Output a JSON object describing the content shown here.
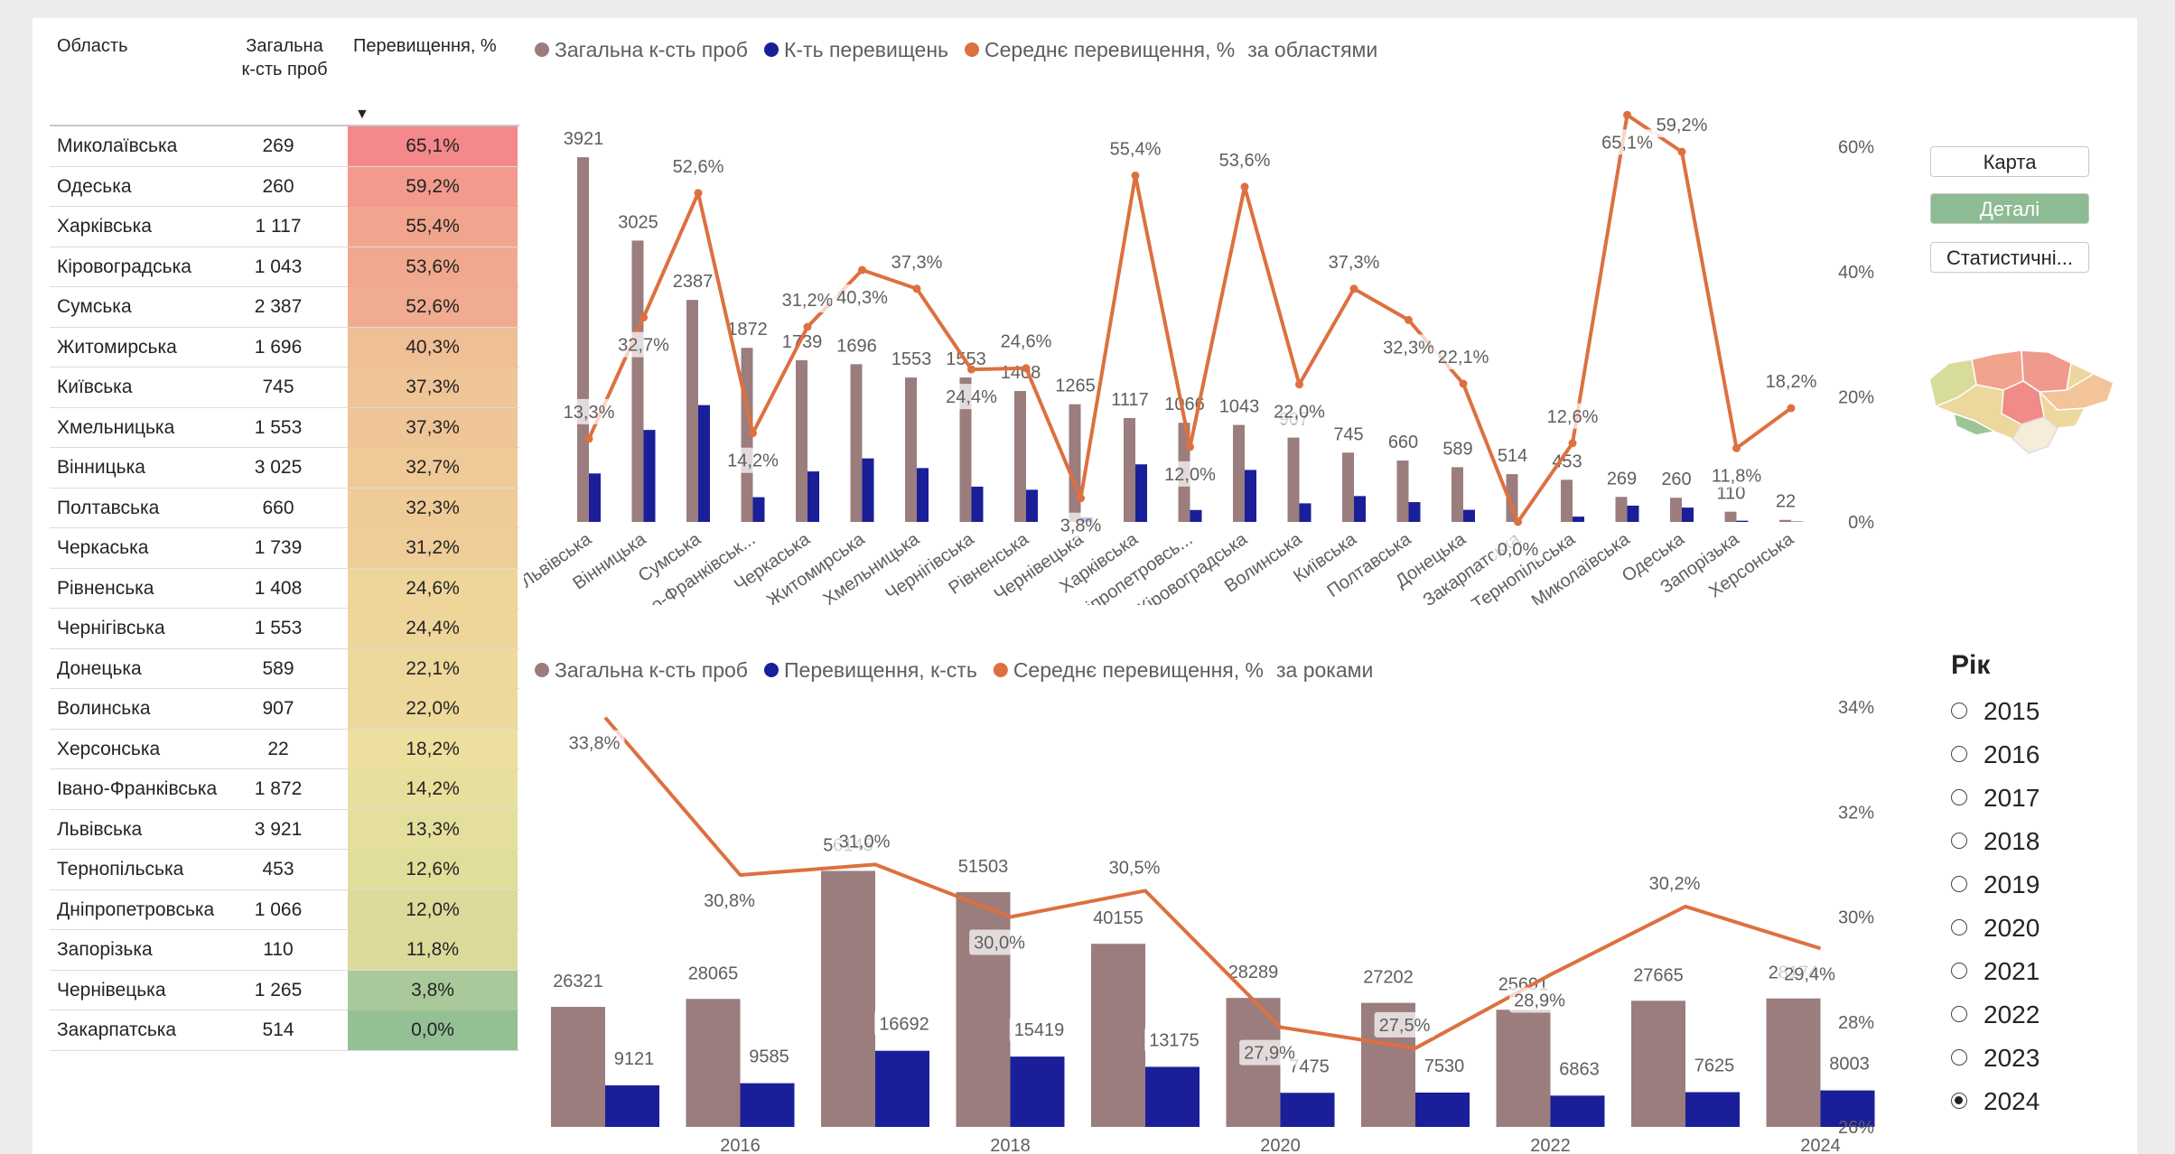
{
  "table": {
    "headers": {
      "region": "Область",
      "total": "Загальна к-сть проб",
      "exceed": "Перевищення, %"
    },
    "rows": [
      {
        "region": "Миколаївська",
        "total": "269",
        "pct": "65,1%",
        "color": "#f4888a"
      },
      {
        "region": "Одеська",
        "total": "260",
        "pct": "59,2%",
        "color": "#f29a8e"
      },
      {
        "region": "Харківська",
        "total": "1 117",
        "pct": "55,4%",
        "color": "#f1a58f"
      },
      {
        "region": "Кіровоградська",
        "total": "1 043",
        "pct": "53,6%",
        "color": "#f0a88f"
      },
      {
        "region": "Сумська",
        "total": "2 387",
        "pct": "52,6%",
        "color": "#f0ab90"
      },
      {
        "region": "Житомирська",
        "total": "1 696",
        "pct": "40,3%",
        "color": "#efbf95"
      },
      {
        "region": "Київська",
        "total": "745",
        "pct": "37,3%",
        "color": "#efc497"
      },
      {
        "region": "Хмельницька",
        "total": "1 553",
        "pct": "37,3%",
        "color": "#efc497"
      },
      {
        "region": "Вінницька",
        "total": "3 025",
        "pct": "32,7%",
        "color": "#efca98"
      },
      {
        "region": "Полтавська",
        "total": "660",
        "pct": "32,3%",
        "color": "#efcb98"
      },
      {
        "region": "Черкаська",
        "total": "1 739",
        "pct": "31,2%",
        "color": "#efcd99"
      },
      {
        "region": "Рівненська",
        "total": "1 408",
        "pct": "24,6%",
        "color": "#eed69b"
      },
      {
        "region": "Чернігівська",
        "total": "1 553",
        "pct": "24,4%",
        "color": "#eed69b"
      },
      {
        "region": "Донецька",
        "total": "589",
        "pct": "22,1%",
        "color": "#eed99c"
      },
      {
        "region": "Волинська",
        "total": "907",
        "pct": "22,0%",
        "color": "#eed99c"
      },
      {
        "region": "Херсонська",
        "total": "22",
        "pct": "18,2%",
        "color": "#eddf9e"
      },
      {
        "region": "Івано-Франківська",
        "total": "1 872",
        "pct": "14,2%",
        "color": "#e7e09d"
      },
      {
        "region": "Львівська",
        "total": "3 921",
        "pct": "13,3%",
        "color": "#e4df9d"
      },
      {
        "region": "Тернопільська",
        "total": "453",
        "pct": "12,6%",
        "color": "#e1de9c"
      },
      {
        "region": "Дніпропетровська",
        "total": "1 066",
        "pct": "12,0%",
        "color": "#ddda9b"
      },
      {
        "region": "Запорізька",
        "total": "110",
        "pct": "11,8%",
        "color": "#dcda9b"
      },
      {
        "region": "Чернівецька",
        "total": "1 265",
        "pct": "3,8%",
        "color": "#a9c99a"
      },
      {
        "region": "Закарпатська",
        "total": "514",
        "pct": "0,0%",
        "color": "#94c095"
      }
    ]
  },
  "buttons": {
    "map": "Карта",
    "details": "Деталі",
    "stats": "Статистичні..."
  },
  "year_slicer": {
    "title": "Рік",
    "years": [
      "2015",
      "2016",
      "2017",
      "2018",
      "2019",
      "2020",
      "2021",
      "2022",
      "2023",
      "2024"
    ],
    "selected": "2024"
  },
  "colors": {
    "total": "#9b7d7e",
    "exceed": "#1a1f99",
    "avg": "#dd7040"
  },
  "chart_data": [
    {
      "type": "bar",
      "legend": [
        "Загальна к-сть проб",
        "К-ть перевищень",
        "Середнє перевищення, %"
      ],
      "title": "за областями",
      "categories": [
        "Львівська",
        "Вінницька",
        "Сумська",
        "Івано-Франківськ...",
        "Черкаська",
        "Житомирська",
        "Хмельницька",
        "Чернігівська",
        "Рівненська",
        "Чернівецька",
        "Харківська",
        "Дніпропетровсь...",
        "Кіровоградська",
        "Волинська",
        "Київська",
        "Полтавська",
        "Донецька",
        "Закарпатська",
        "Тернопільська",
        "Миколаївська",
        "Одеська",
        "Запорізька",
        "Херсонська"
      ],
      "series": [
        {
          "name": "Загальна к-сть проб",
          "values": [
            3921,
            3025,
            2387,
            1872,
            1739,
            1696,
            1553,
            1553,
            1408,
            1265,
            1117,
            1066,
            1043,
            907,
            745,
            660,
            589,
            514,
            453,
            269,
            260,
            110,
            22
          ]
        },
        {
          "name": "К-ть перевищень",
          "values": [
            521,
            989,
            1256,
            266,
            543,
            683,
            579,
            379,
            346,
            48,
            619,
            128,
            559,
            200,
            278,
            213,
            130,
            0,
            57,
            175,
            154,
            13,
            4
          ]
        },
        {
          "name": "Середнє перевищення, %",
          "axis": "secondary",
          "values": [
            13.3,
            32.7,
            52.6,
            14.2,
            31.2,
            40.3,
            37.3,
            24.4,
            24.6,
            3.8,
            55.4,
            12.0,
            53.6,
            22.0,
            37.3,
            32.3,
            22.1,
            0.0,
            12.6,
            65.1,
            59.2,
            11.8,
            18.2
          ]
        }
      ],
      "total_labels": [
        "3921",
        "3025",
        "2387",
        "1872",
        "1739",
        "1696",
        "1553",
        "1553",
        "1408",
        "1265",
        "1117",
        "1066",
        "1043",
        "907",
        "745",
        "660",
        "589",
        "514",
        "453",
        "269",
        "260",
        "110",
        "22"
      ],
      "pct_labels": [
        "13,3%",
        "32,7%",
        "52,6%",
        "14,2%",
        "31,2%",
        "40,3%",
        "37,3%",
        "24,4%",
        "24,6%",
        "3,8%",
        "55,4%",
        "12,0%",
        "53,6%",
        "22,0%",
        "37,3%",
        "32,3%",
        "22,1%",
        "0,0%",
        "12,6%",
        "65,1%",
        "59,2%",
        "11,8%",
        "18,2%"
      ],
      "ylim": [
        0,
        4000
      ],
      "y2lim": [
        0,
        65
      ],
      "y2ticks": [
        "0%",
        "20%",
        "40%",
        "60%"
      ]
    },
    {
      "type": "bar",
      "legend": [
        "Загальна к-сть проб",
        "Перевищення, к-сть",
        "Середнє перевищення, %"
      ],
      "title": "за роками",
      "x": [
        "2015",
        "2016",
        "2017",
        "2018",
        "2019",
        "2020",
        "2021",
        "2022",
        "2023",
        "2024"
      ],
      "xticks": [
        "2016",
        "2018",
        "2020",
        "2022",
        "2024"
      ],
      "series": [
        {
          "name": "Загальна к-сть проб",
          "values": [
            26321,
            28065,
            56145,
            51503,
            40155,
            28289,
            27202,
            25691,
            27665,
            28174
          ]
        },
        {
          "name": "Перевищення, к-сть",
          "values": [
            9121,
            9585,
            16692,
            15419,
            13175,
            7475,
            7530,
            6863,
            7625,
            8003
          ]
        },
        {
          "name": "Середнє перевищення, %",
          "axis": "secondary",
          "values": [
            33.8,
            30.8,
            31.0,
            30.0,
            30.5,
            27.9,
            27.5,
            28.9,
            30.2,
            29.4
          ]
        }
      ],
      "total_labels": [
        "26321",
        "28065",
        "56145",
        "51503",
        "40155",
        "28289",
        "27202",
        "25691",
        "27665",
        "28174"
      ],
      "exceed_labels": [
        "9121",
        "9585",
        "16692",
        "15419",
        "13175",
        "7475",
        "7530",
        "6863",
        "7625",
        "8003"
      ],
      "pct_labels": [
        "33,8%",
        "30,8%",
        "31,0%",
        "30,0%",
        "30,5%",
        "27,9%",
        "27,5%",
        "28,9%",
        "30,2%",
        "29,4%"
      ],
      "ylim": [
        0,
        60000
      ],
      "y2lim": [
        26,
        34
      ],
      "y2ticks": [
        "26%",
        "28%",
        "30%",
        "32%",
        "34%"
      ]
    }
  ]
}
